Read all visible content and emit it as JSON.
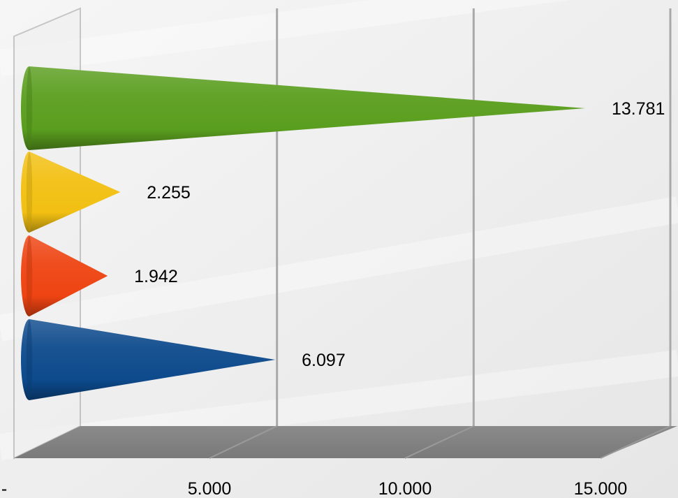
{
  "chart_data": {
    "type": "bar",
    "orientation": "horizontal",
    "shape": "cone",
    "style": "3d",
    "categories": [
      "",
      "",
      "",
      ""
    ],
    "values": [
      13781,
      2255,
      1942,
      6097
    ],
    "value_labels": [
      "13.781",
      "2.255",
      "1.942",
      "6.097"
    ],
    "colors": [
      "#5a9e1e",
      "#f2c012",
      "#ee4412",
      "#0d4a8c"
    ],
    "xlim": [
      0,
      15000
    ],
    "ticks": [
      0,
      5000,
      10000,
      15000
    ],
    "tick_labels": [
      "-",
      "5.000",
      "10.000",
      "15.000"
    ],
    "title": "",
    "xlabel": "",
    "ylabel": "",
    "grid": true,
    "legend": "none"
  }
}
